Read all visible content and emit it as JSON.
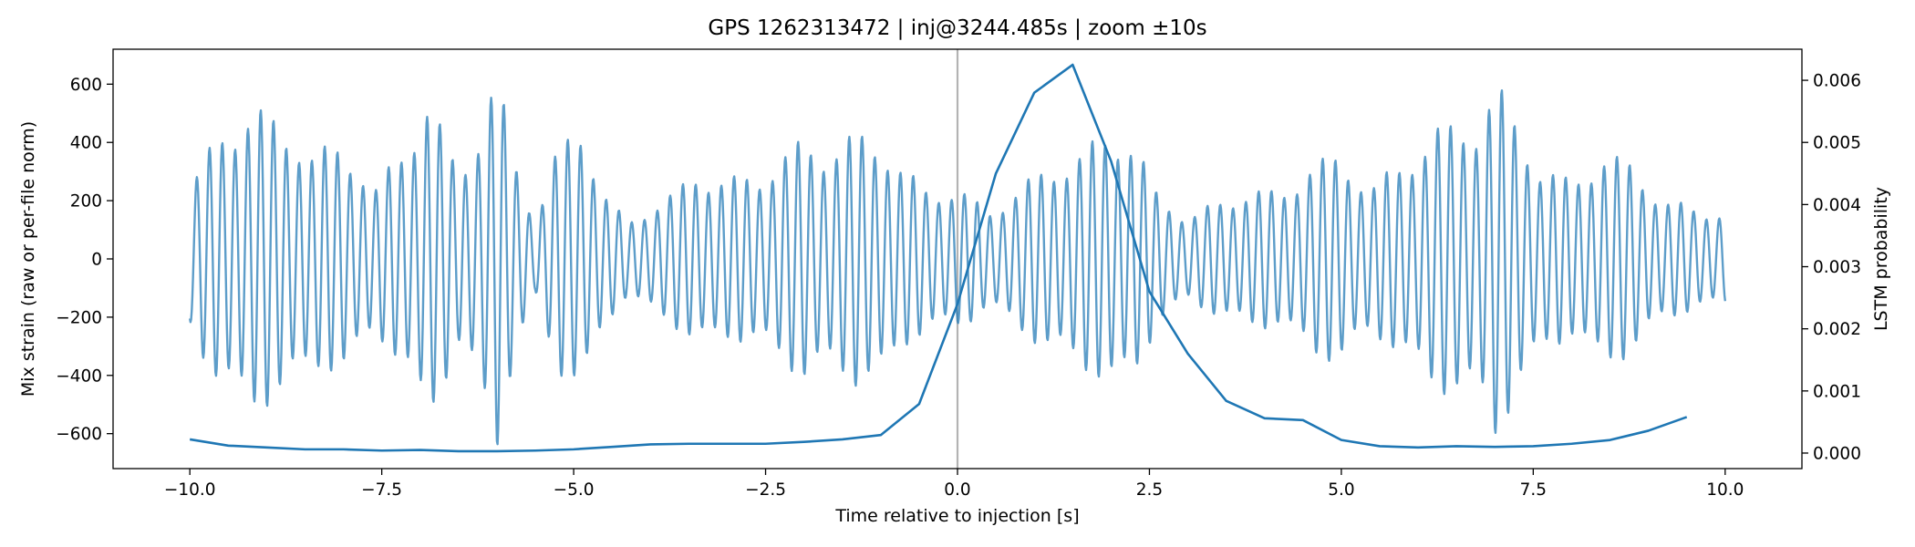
{
  "chart_data": {
    "type": "line",
    "title": "GPS 1262313472 | inj@3244.485s | zoom ±10s",
    "xlabel": "Time relative to injection [s]",
    "ylabel_left": "Mix strain (raw or per-file norm)",
    "ylabel_right": "LSTM probability",
    "xlim": [
      -11,
      11
    ],
    "ylim_left": [
      -720,
      720
    ],
    "ylim_right": [
      -0.00025,
      0.0065
    ],
    "x_ticks": [
      -10.0,
      -7.5,
      -5.0,
      -2.5,
      0.0,
      2.5,
      5.0,
      7.5,
      10.0
    ],
    "x_tick_labels": [
      "−10.0",
      "−7.5",
      "−5.0",
      "−2.5",
      "0.0",
      "2.5",
      "5.0",
      "7.5",
      "10.0"
    ],
    "y_left_ticks": [
      -600,
      -400,
      -200,
      0,
      200,
      400,
      600
    ],
    "y_left_tick_labels": [
      "−600",
      "−400",
      "−200",
      "0",
      "200",
      "400",
      "600"
    ],
    "y_right_ticks": [
      0.0,
      0.001,
      0.002,
      0.003,
      0.004,
      0.005,
      0.006
    ],
    "y_right_tick_labels": [
      "0.000",
      "0.001",
      "0.002",
      "0.003",
      "0.004",
      "0.005",
      "0.006"
    ],
    "grid": false,
    "injection_marker_x": 0.0,
    "series": [
      {
        "axis": "left",
        "color": "#1f77b4",
        "opacity": 0.72,
        "kind": "strain_oscillation",
        "x_range": [
          -10.0,
          10.0
        ],
        "approx_frequency_hz": 6.0,
        "envelope": [
          [
            -10.0,
            240
          ],
          [
            -9.6,
            470
          ],
          [
            -9.2,
            520
          ],
          [
            -8.8,
            500
          ],
          [
            -8.4,
            360
          ],
          [
            -8.0,
            430
          ],
          [
            -7.6,
            230
          ],
          [
            -7.3,
            380
          ],
          [
            -6.9,
            550
          ],
          [
            -6.5,
            330
          ],
          [
            -6.2,
            470
          ],
          [
            -6.0,
            650
          ],
          [
            -5.8,
            400
          ],
          [
            -5.5,
            140
          ],
          [
            -5.2,
            390
          ],
          [
            -4.9,
            490
          ],
          [
            -4.6,
            230
          ],
          [
            -4.3,
            130
          ],
          [
            -4.0,
            190
          ],
          [
            -3.7,
            230
          ],
          [
            -3.4,
            310
          ],
          [
            -3.0,
            280
          ],
          [
            -2.6,
            300
          ],
          [
            -2.3,
            360
          ],
          [
            -2.0,
            420
          ],
          [
            -1.7,
            390
          ],
          [
            -1.3,
            440
          ],
          [
            -1.0,
            430
          ],
          [
            -0.7,
            310
          ],
          [
            -0.4,
            250
          ],
          [
            0.0,
            250
          ],
          [
            0.4,
            170
          ],
          [
            0.8,
            250
          ],
          [
            1.2,
            330
          ],
          [
            1.6,
            370
          ],
          [
            2.0,
            460
          ],
          [
            2.3,
            420
          ],
          [
            2.6,
            230
          ],
          [
            3.0,
            150
          ],
          [
            3.4,
            200
          ],
          [
            3.8,
            250
          ],
          [
            4.2,
            230
          ],
          [
            4.6,
            340
          ],
          [
            5.0,
            360
          ],
          [
            5.4,
            260
          ],
          [
            5.8,
            340
          ],
          [
            6.2,
            460
          ],
          [
            6.5,
            470
          ],
          [
            6.8,
            500
          ],
          [
            7.0,
            630
          ],
          [
            7.3,
            470
          ],
          [
            7.6,
            330
          ],
          [
            8.0,
            270
          ],
          [
            8.4,
            380
          ],
          [
            8.8,
            330
          ],
          [
            9.2,
            210
          ],
          [
            9.6,
            180
          ],
          [
            10.0,
            170
          ]
        ],
        "min_value": -650,
        "max_value": 655
      },
      {
        "axis": "right",
        "color": "#1f77b4",
        "x": [
          -10.0,
          -9.5,
          -9.0,
          -8.5,
          -8.0,
          -7.5,
          -7.0,
          -6.5,
          -6.0,
          -5.5,
          -5.0,
          -4.5,
          -4.0,
          -3.5,
          -3.0,
          -2.5,
          -2.0,
          -1.5,
          -1.0,
          -0.5,
          0.0,
          0.5,
          1.0,
          1.5,
          2.0,
          2.5,
          3.0,
          3.5,
          4.0,
          4.5,
          5.0,
          5.5,
          6.0,
          6.5,
          7.0,
          7.5,
          8.0,
          8.5,
          9.0,
          9.5
        ],
        "y": [
          0.00022,
          0.00012,
          9e-05,
          6e-05,
          6e-05,
          4e-05,
          5e-05,
          3e-05,
          3e-05,
          4e-05,
          6e-05,
          0.0001,
          0.00014,
          0.00015,
          0.00015,
          0.00015,
          0.00018,
          0.00022,
          0.00029,
          0.00079,
          0.0024,
          0.0045,
          0.0058,
          0.00625,
          0.0047,
          0.0026,
          0.0016,
          0.00084,
          0.00056,
          0.00053,
          0.00021,
          0.00011,
          9e-05,
          0.00011,
          0.0001,
          0.00011,
          0.00015,
          0.00021,
          0.00036,
          0.00058
        ]
      }
    ]
  }
}
